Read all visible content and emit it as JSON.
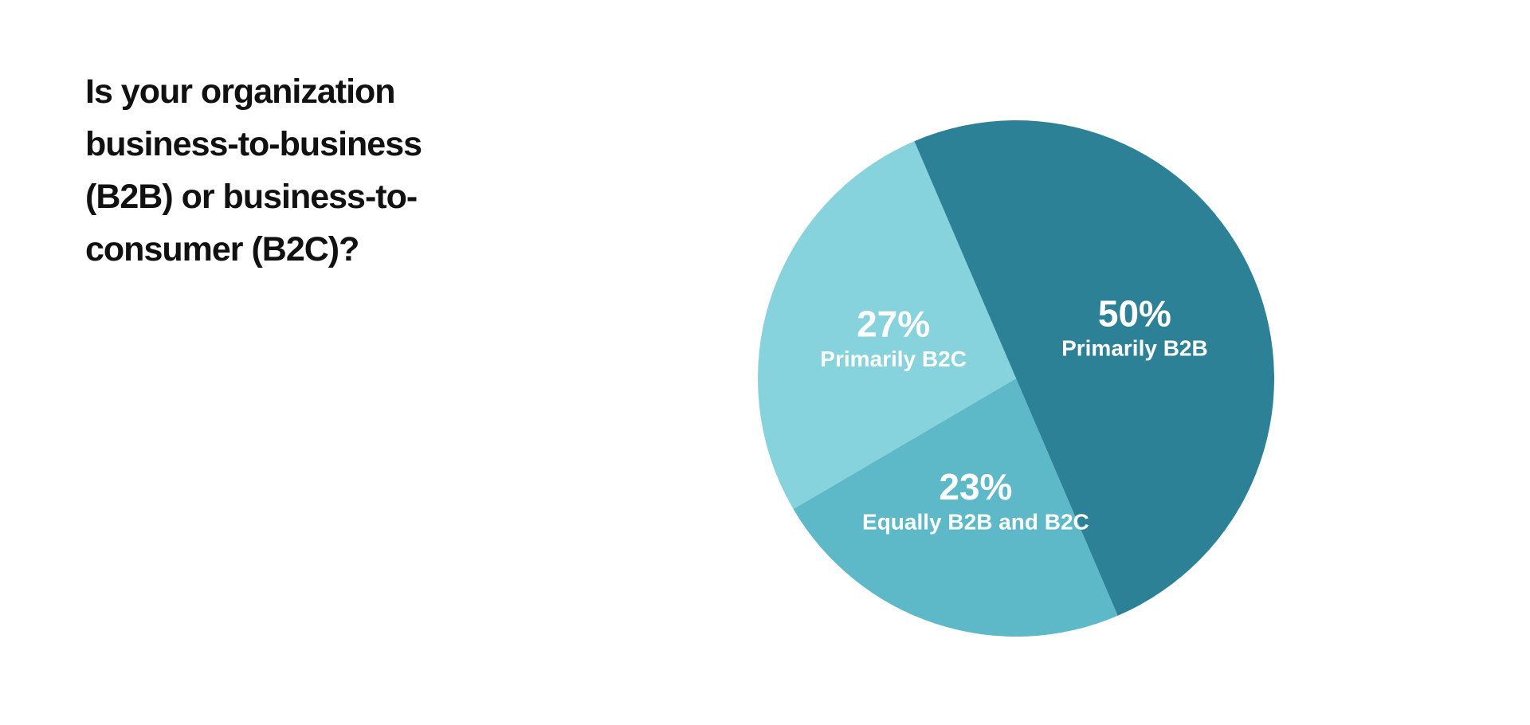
{
  "chart_data": {
    "type": "pie",
    "title": "Is your organization business-to-business (B2B) or business-to-consumer (B2C)?",
    "categories": [
      "Primarily B2B",
      "Equally B2B and B2C",
      "Primarily B2C"
    ],
    "values": [
      50,
      23,
      27
    ],
    "value_labels": [
      "50%",
      "23%",
      "27%"
    ],
    "colors": [
      "#2d8196",
      "#5db8c8",
      "#86d2dd"
    ]
  }
}
